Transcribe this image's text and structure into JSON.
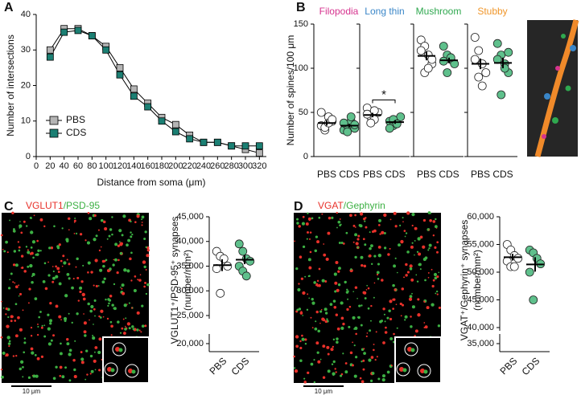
{
  "chart_data": [
    {
      "type": "line",
      "panel": "A",
      "xlabel": "Distance from soma (μm)",
      "ylabel": "Number of intersections",
      "x": [
        20,
        40,
        60,
        80,
        100,
        120,
        140,
        160,
        180,
        200,
        220,
        240,
        260,
        280,
        300,
        320
      ],
      "series": [
        {
          "name": "PBS",
          "color": "#b4b4b4",
          "values": [
            30,
            36,
            36,
            34,
            31,
            25,
            19,
            15,
            11,
            9,
            6,
            4,
            4,
            3,
            2,
            1
          ]
        },
        {
          "name": "CDS",
          "color": "#1b7f73",
          "values": [
            28,
            35,
            35.5,
            34,
            30,
            23,
            17,
            14,
            10,
            7,
            5,
            4,
            4,
            3,
            3,
            3
          ]
        }
      ],
      "xlim": [
        0,
        330
      ],
      "xticks": [
        0,
        20,
        40,
        60,
        80,
        100,
        120,
        140,
        160,
        180,
        200,
        220,
        240,
        260,
        280,
        300,
        320
      ],
      "ylim": [
        0,
        40
      ],
      "yticks": [
        0,
        10,
        20,
        30,
        40
      ],
      "legend": "lower left"
    },
    {
      "type": "dot",
      "panel": "B",
      "ylabel": "Number of spines/100 μm",
      "categories": [
        "PBS",
        "CDS"
      ],
      "ylim": [
        0,
        150
      ],
      "yticks": [
        0,
        50,
        100,
        150
      ],
      "groups": [
        {
          "name": "Filopodia",
          "color": "#d6338f",
          "series": [
            {
              "color": "#ffffff",
              "values": [
                35,
                30,
                45,
                40,
                50,
                33,
                38,
                42
              ],
              "mean": 38,
              "sem": 3
            },
            {
              "color": "#5fc08c",
              "values": [
                30,
                35,
                40,
                32,
                38,
                28,
                45,
                36
              ],
              "mean": 35,
              "sem": 2
            }
          ]
        },
        {
          "name": "Long thin",
          "color": "#3a86c8",
          "annotation": "*",
          "series": [
            {
              "color": "#ffffff",
              "values": [
                55,
                45,
                42,
                50,
                48,
                38,
                52
              ],
              "mean": 47,
              "sem": 2.5
            },
            {
              "color": "#5fc08c",
              "values": [
                40,
                35,
                38,
                45,
                32,
                42,
                37
              ],
              "mean": 39,
              "sem": 2
            }
          ]
        },
        {
          "name": "Mushroom",
          "color": "#2fa84f",
          "series": [
            {
              "color": "#ffffff",
              "values": [
                132,
                125,
                115,
                105,
                120,
                95,
                100,
                110
              ],
              "mean": 114,
              "sem": 5
            },
            {
              "color": "#5fc08c",
              "values": [
                125,
                115,
                110,
                105,
                108,
                95,
                112
              ],
              "mean": 109,
              "sem": 3
            }
          ]
        },
        {
          "name": "Stubby",
          "color": "#f0962a",
          "series": [
            {
              "color": "#ffffff",
              "values": [
                135,
                120,
                105,
                95,
                110,
                90,
                80
              ],
              "mean": 105,
              "sem": 6
            },
            {
              "color": "#5fc08c",
              "values": [
                128,
                115,
                105,
                95,
                110,
                70,
                100,
                118
              ],
              "mean": 106,
              "sem": 6
            }
          ]
        }
      ]
    },
    {
      "type": "dot",
      "panel": "C",
      "image_label": [
        {
          "text": "VGLUT1",
          "color": "#e8312a"
        },
        {
          "text": "/PSD-95",
          "color": "#3cb043"
        }
      ],
      "scale_bar": "10 μm",
      "ylabel": [
        "VGLUT1⁺/PSD-95⁺ synapses",
        "(number/mm²)"
      ],
      "categories": [
        "PBS",
        "CDS"
      ],
      "ylim": [
        20000,
        45000
      ],
      "yticks": [
        {
          "value": 20000,
          "label": "20,000"
        },
        {
          "value": 25000,
          "label": "25,000"
        },
        {
          "value": 30000,
          "label": "30,000"
        },
        {
          "value": 35000,
          "label": "35,000"
        },
        {
          "value": 40000,
          "label": "40,000"
        },
        {
          "value": 45000,
          "label": "45,000"
        }
      ],
      "groups": [
        {
          "series": [
            {
              "color": "#ffffff",
              "values": [
                38000,
                37000,
                36500,
                35000,
                34500,
                29500
              ],
              "mean": 35200,
              "sem": 1200
            },
            {
              "color": "#5fc08c",
              "values": [
                39500,
                38000,
                36500,
                36000,
                35000,
                34000,
                33000
              ],
              "mean": 36300,
              "sem": 900
            }
          ]
        }
      ]
    },
    {
      "type": "dot",
      "panel": "D",
      "image_label": [
        {
          "text": "VGAT",
          "color": "#e8312a"
        },
        {
          "text": "/Gephyrin",
          "color": "#3cb043"
        }
      ],
      "scale_bar": "10 μm",
      "ylabel": [
        "VGAT⁺/Gephyrin⁺ synapses",
        "(number/mm²)"
      ],
      "categories": [
        "PBS",
        "CDS"
      ],
      "ylim": [
        35000,
        60000
      ],
      "yticks": [
        {
          "value": 35000,
          "label": "35,000"
        },
        {
          "value": 40000,
          "label": "40,000"
        },
        {
          "value": 45000,
          "label": "45,000"
        },
        {
          "value": 50000,
          "label": "50,000"
        },
        {
          "value": 55000,
          "label": "55,000"
        },
        {
          "value": 60000,
          "label": "60,000"
        }
      ],
      "groups": [
        {
          "series": [
            {
              "color": "#ffffff",
              "values": [
                55000,
                54000,
                53000,
                52500,
                52000,
                51000,
                51000
              ],
              "mean": 52700,
              "sem": 600
            },
            {
              "color": "#5fc08c",
              "values": [
                54000,
                53500,
                52500,
                51500,
                50000,
                45000
              ],
              "mean": 51400,
              "sem": 1300
            }
          ]
        }
      ]
    }
  ]
}
